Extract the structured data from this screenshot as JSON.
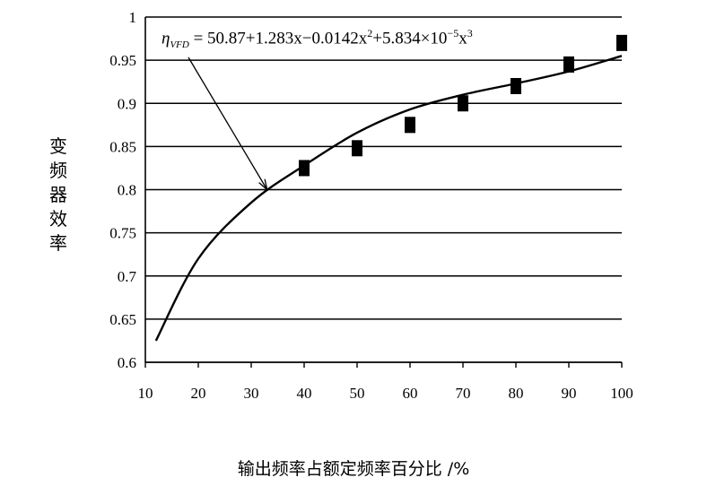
{
  "chart_data": {
    "type": "scatter",
    "title": "",
    "xlabel": "输出频率占额定频率百分比 /%",
    "ylabel": "变频器效率",
    "xlim": [
      10,
      100
    ],
    "ylim": [
      0.6,
      1.0
    ],
    "x_ticks": [
      "10",
      "20",
      "30",
      "40",
      "50",
      "60",
      "70",
      "80",
      "90",
      "100"
    ],
    "y_ticks": [
      "0.6",
      "0.65",
      "0.7",
      "0.75",
      "0.8",
      "0.85",
      "0.9",
      "0.95",
      "1"
    ],
    "grid": "horizontal",
    "series": [
      {
        "type": "scatter",
        "marker": "square",
        "x": [
          40,
          50,
          60,
          70,
          80,
          90,
          100
        ],
        "y": [
          0.825,
          0.848,
          0.875,
          0.9,
          0.92,
          0.945,
          0.97
        ]
      },
      {
        "type": "line",
        "x": [
          12,
          20,
          30,
          40,
          50,
          60,
          70,
          80,
          90,
          100
        ],
        "y": [
          0.625,
          0.72,
          0.785,
          0.828,
          0.866,
          0.893,
          0.91,
          0.923,
          0.937,
          0.955
        ]
      }
    ],
    "annotation": {
      "text_prefix": "η",
      "text_sub": "VFD",
      "text_main": " = 50.87+1.283x−0.0142x",
      "text_sup1": "2",
      "text_mid": "+5.834×10",
      "text_sup2": "−5",
      "text_end": "x",
      "text_sup3": "3",
      "arrow_target": {
        "x": 33,
        "y": 0.8
      }
    }
  }
}
